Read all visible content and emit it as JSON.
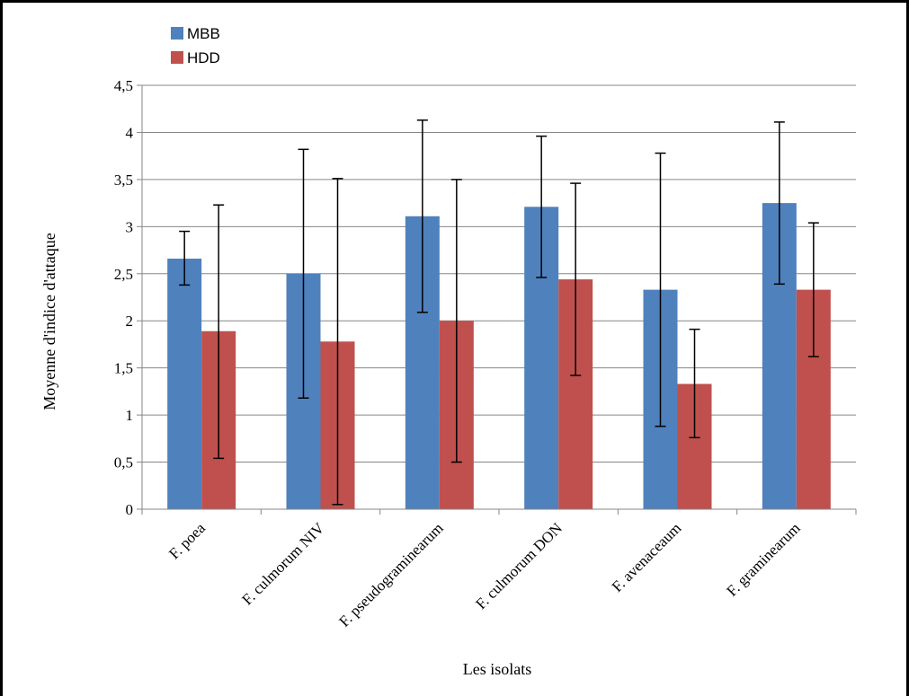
{
  "chart_data": {
    "type": "bar",
    "categories": [
      "F. poea",
      "F. culmorum NIV",
      "F. pseudograminearum",
      "F. culmorum DON",
      "F. avenaceaum",
      "F. graminearum"
    ],
    "series": [
      {
        "name": "MBB",
        "color": "#4f81bd",
        "values": [
          2.66,
          2.5,
          3.11,
          3.21,
          2.33,
          3.25
        ],
        "error_low": [
          2.38,
          1.18,
          2.09,
          2.46,
          0.88,
          2.39
        ],
        "error_high": [
          2.95,
          3.82,
          4.13,
          3.96,
          3.78,
          4.11
        ]
      },
      {
        "name": "HDD",
        "color": "#c0504d",
        "values": [
          1.89,
          1.78,
          2.0,
          2.44,
          1.33,
          2.33
        ],
        "error_low": [
          0.54,
          0.05,
          0.5,
          1.42,
          0.76,
          1.62
        ],
        "error_high": [
          3.23,
          3.51,
          3.5,
          3.46,
          1.91,
          3.04
        ]
      }
    ],
    "xlabel": "Les isolats",
    "ylabel": "Moyenne d'indice d'attaque",
    "ylim": [
      0,
      4.5
    ],
    "yticks": [
      "0",
      "0,5",
      "1",
      "1,5",
      "2",
      "2,5",
      "3",
      "3,5",
      "4",
      "4,5"
    ],
    "grid": true,
    "legend_position": "top-left"
  }
}
